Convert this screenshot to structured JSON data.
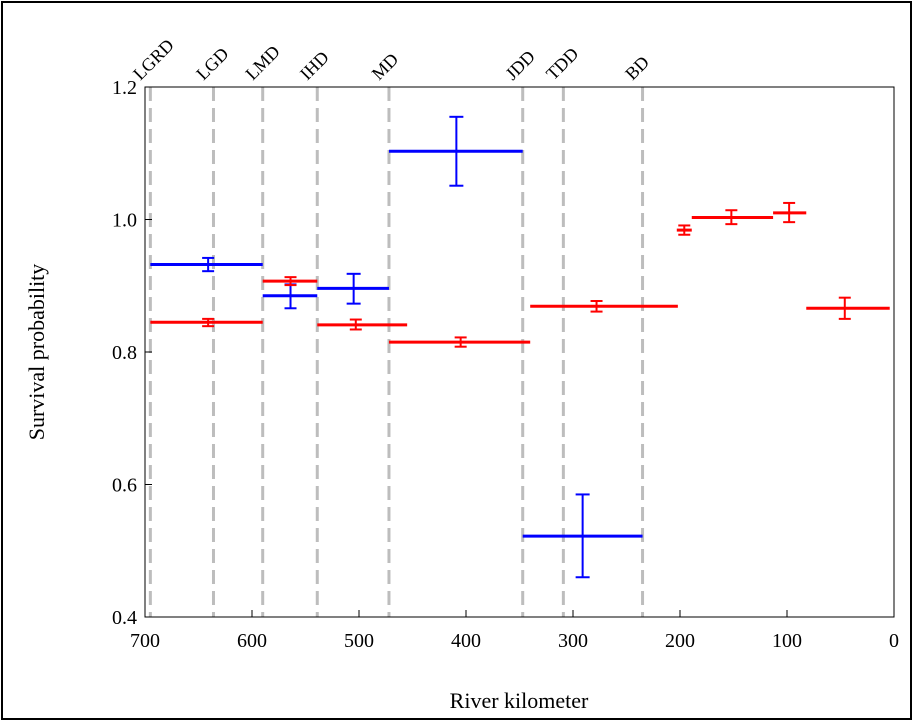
{
  "chart_data": {
    "type": "scatter",
    "xlabel": "River kilometer",
    "ylabel": "Survival probability",
    "xlim": [
      700,
      0
    ],
    "ylim": [
      0.4,
      1.2
    ],
    "x_ticks": [
      700,
      600,
      500,
      400,
      300,
      200,
      100,
      0
    ],
    "x_tick_labels": [
      "700",
      "600",
      "500",
      "400",
      "300",
      "200",
      "100",
      "0"
    ],
    "y_ticks": [
      0.4,
      0.6,
      0.8,
      1.0,
      1.2
    ],
    "y_tick_labels": [
      "0.4",
      "0.6",
      "0.8",
      "1.0",
      "1.2"
    ],
    "grid": false,
    "legend": "none",
    "dams": [
      {
        "label": "LGRD",
        "rkm": 695
      },
      {
        "label": "LGD",
        "rkm": 636
      },
      {
        "label": "LMD",
        "rkm": 590
      },
      {
        "label": "IHD",
        "rkm": 539
      },
      {
        "label": "MD",
        "rkm": 472
      },
      {
        "label": "JDD",
        "rkm": 347
      },
      {
        "label": "TDD",
        "rkm": 309
      },
      {
        "label": "BD",
        "rkm": 235
      }
    ],
    "series": [
      {
        "color": "#0000ff",
        "points": [
          {
            "x_start": 695,
            "x_end": 590,
            "x": 641,
            "y": 0.932,
            "y_low": 0.922,
            "y_high": 0.942
          },
          {
            "x_start": 590,
            "x_end": 539,
            "x": 564,
            "y": 0.885,
            "y_low": 0.866,
            "y_high": 0.902
          },
          {
            "x_start": 539,
            "x_end": 472,
            "x": 505,
            "y": 0.896,
            "y_low": 0.873,
            "y_high": 0.918
          },
          {
            "x_start": 472,
            "x_end": 347,
            "x": 409,
            "y": 1.103,
            "y_low": 1.051,
            "y_high": 1.155
          },
          {
            "x_start": 347,
            "x_end": 235,
            "x": 291,
            "y": 0.522,
            "y_low": 0.46,
            "y_high": 0.585
          }
        ]
      },
      {
        "color": "#ff0000",
        "points": [
          {
            "x_start": 695,
            "x_end": 590,
            "x": 641,
            "y": 0.845,
            "y_low": 0.839,
            "y_high": 0.85
          },
          {
            "x_start": 590,
            "x_end": 539,
            "x": 564,
            "y": 0.907,
            "y_low": 0.901,
            "y_high": 0.913
          },
          {
            "x_start": 539,
            "x_end": 455,
            "x": 503,
            "y": 0.841,
            "y_low": 0.834,
            "y_high": 0.849
          },
          {
            "x_start": 472,
            "x_end": 340,
            "x": 405,
            "y": 0.815,
            "y_low": 0.808,
            "y_high": 0.822
          },
          {
            "x_start": 340,
            "x_end": 202,
            "x": 278,
            "y": 0.869,
            "y_low": 0.861,
            "y_high": 0.877
          },
          {
            "x_start": 203,
            "x_end": 189,
            "x": 196,
            "y": 0.984,
            "y_low": 0.977,
            "y_high": 0.991
          },
          {
            "x_start": 189,
            "x_end": 113,
            "x": 152,
            "y": 1.003,
            "y_low": 0.993,
            "y_high": 1.014
          },
          {
            "x_start": 113,
            "x_end": 82,
            "x": 98,
            "y": 1.01,
            "y_low": 0.996,
            "y_high": 1.025
          },
          {
            "x_start": 82,
            "x_end": 4,
            "x": 46,
            "y": 0.866,
            "y_low": 0.85,
            "y_high": 0.882
          }
        ]
      }
    ]
  }
}
